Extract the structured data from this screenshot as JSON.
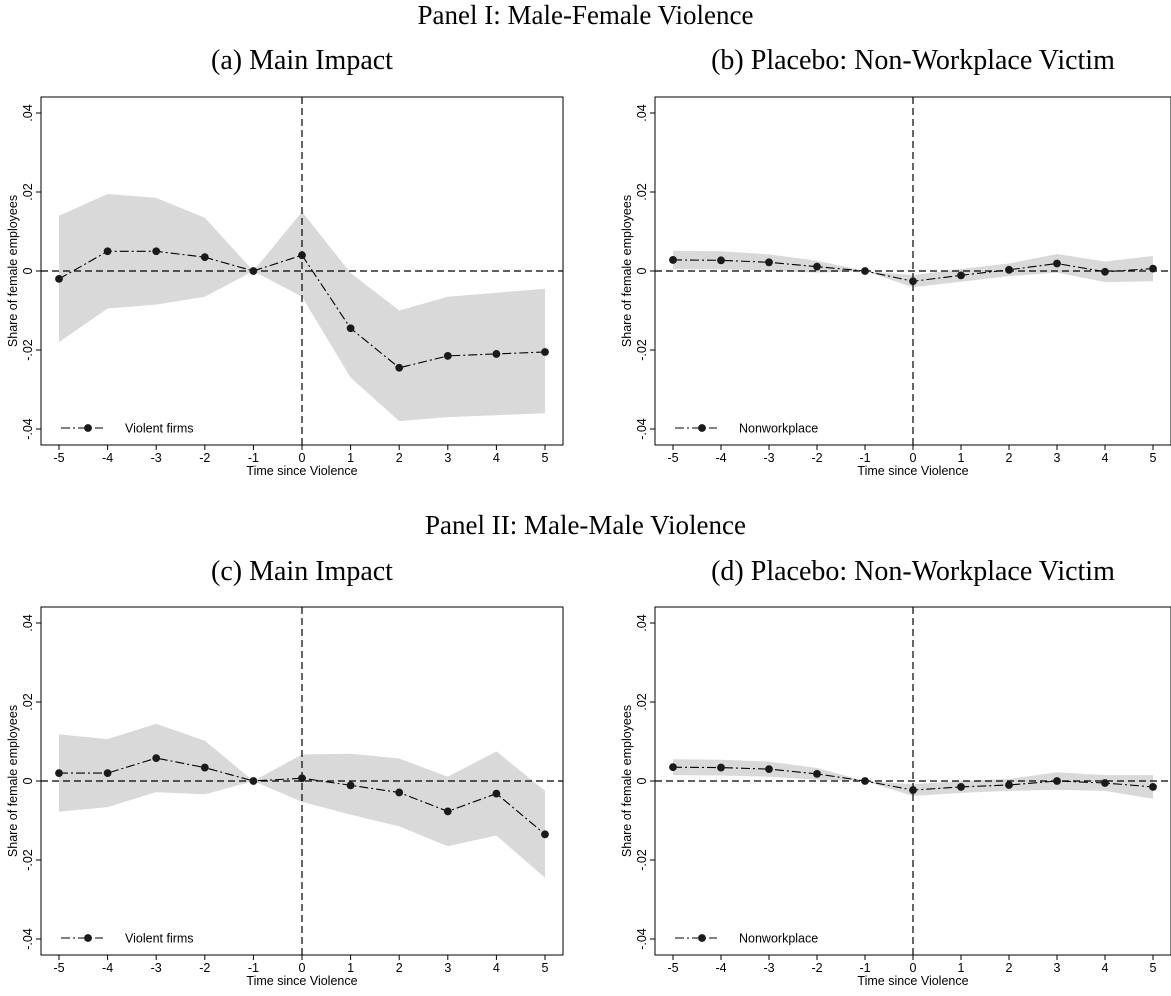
{
  "panels": [
    {
      "title": "Panel I: Male-Female Violence"
    },
    {
      "title": "Panel II: Male-Male Violence"
    }
  ],
  "chart_data": [
    {
      "type": "line",
      "title": "(a) Main Impact",
      "xlabel": "Time since Violence",
      "ylabel": "Share of female employees",
      "x": [
        -5,
        -4,
        -3,
        -2,
        -1,
        0,
        1,
        2,
        3,
        4,
        5
      ],
      "xlim": [
        -5,
        5
      ],
      "ylim": [
        -0.04,
        0.04
      ],
      "xticks": [
        "-5",
        "-4",
        "-3",
        "-2",
        "-1",
        "0",
        "1",
        "2",
        "3",
        "4",
        "5"
      ],
      "yticks": [
        ".04",
        ".02",
        "0",
        "-.02",
        "-.04"
      ],
      "series": [
        {
          "name": "Violent firms",
          "values": [
            -0.002,
            0.005,
            0.005,
            0.0035,
            0.0,
            0.004,
            -0.0145,
            -0.0245,
            -0.0215,
            -0.021,
            -0.0205
          ],
          "ci_lower": [
            -0.018,
            -0.0095,
            -0.0085,
            -0.0065,
            0.0,
            -0.0065,
            -0.027,
            -0.038,
            -0.037,
            -0.0365,
            -0.036
          ],
          "ci_upper": [
            0.014,
            0.0195,
            0.0185,
            0.0135,
            0.0,
            0.015,
            -0.0005,
            -0.01,
            -0.0065,
            -0.0055,
            -0.0045
          ]
        }
      ],
      "legend": "bottom-left",
      "reference_lines": {
        "x": 0,
        "y": 0
      }
    },
    {
      "type": "line",
      "title": "(b) Placebo: Non-Workplace Victim",
      "xlabel": "Time since Violence",
      "ylabel": "Share of female employees",
      "x": [
        -5,
        -4,
        -3,
        -2,
        -1,
        0,
        1,
        2,
        3,
        4,
        5
      ],
      "xlim": [
        -5,
        5
      ],
      "ylim": [
        -0.04,
        0.04
      ],
      "xticks": [
        "-5",
        "-4",
        "-3",
        "-2",
        "-1",
        "0",
        "1",
        "2",
        "3",
        "4",
        "5"
      ],
      "yticks": [
        ".04",
        ".02",
        "0",
        "-.02",
        "-.04"
      ],
      "series": [
        {
          "name": "Nonworkplace",
          "values": [
            0.0028,
            0.0027,
            0.0022,
            0.0011,
            0.0,
            -0.0026,
            -0.0011,
            0.0003,
            0.0019,
            -0.0002,
            0.0006
          ],
          "ci_lower": [
            0.0005,
            0.0004,
            0.0001,
            -0.0004,
            0.0,
            -0.0041,
            -0.0027,
            -0.0013,
            -0.0004,
            -0.0028,
            -0.0026
          ],
          "ci_upper": [
            0.0051,
            0.005,
            0.0042,
            0.0026,
            0.0,
            -0.0011,
            0.0005,
            0.0019,
            0.0043,
            0.0024,
            0.0038
          ]
        }
      ],
      "legend": "bottom-left",
      "reference_lines": {
        "x": 0,
        "y": 0
      }
    },
    {
      "type": "line",
      "title": "(c) Main Impact",
      "xlabel": "Time since Violence",
      "ylabel": "Share of female employees",
      "x": [
        -5,
        -4,
        -3,
        -2,
        -1,
        0,
        1,
        2,
        3,
        4,
        5
      ],
      "xlim": [
        -5,
        5
      ],
      "ylim": [
        -0.04,
        0.04
      ],
      "xticks": [
        "-5",
        "-4",
        "-3",
        "-2",
        "-1",
        "0",
        "1",
        "2",
        "3",
        "4",
        "5"
      ],
      "yticks": [
        ".04",
        ".02",
        "0",
        "-.02",
        "-.04"
      ],
      "series": [
        {
          "name": "Violent firms",
          "values": [
            0.002,
            0.002,
            0.0058,
            0.0034,
            0.0,
            0.0007,
            -0.0011,
            -0.0029,
            -0.0077,
            -0.0032,
            -0.0135
          ],
          "ci_lower": [
            -0.0078,
            -0.0066,
            -0.0028,
            -0.0034,
            0.0,
            -0.0053,
            -0.0085,
            -0.0115,
            -0.0165,
            -0.0138,
            -0.0245
          ],
          "ci_upper": [
            0.0118,
            0.0106,
            0.0145,
            0.0102,
            0.0,
            0.0067,
            0.0069,
            0.0057,
            0.0011,
            0.0075,
            -0.0025
          ]
        }
      ],
      "legend": "bottom-left",
      "reference_lines": {
        "x": 0,
        "y": 0
      }
    },
    {
      "type": "line",
      "title": "(d) Placebo: Non-Workplace Victim",
      "xlabel": "Time since Violence",
      "ylabel": "Share of female employees",
      "x": [
        -5,
        -4,
        -3,
        -2,
        -1,
        0,
        1,
        2,
        3,
        4,
        5
      ],
      "xlim": [
        -5,
        5
      ],
      "ylim": [
        -0.04,
        0.04
      ],
      "xticks": [
        "-5",
        "-4",
        "-3",
        "-2",
        "-1",
        "0",
        "1",
        "2",
        "3",
        "4",
        "5"
      ],
      "yticks": [
        ".04",
        ".02",
        "0",
        "-.02",
        "-.04"
      ],
      "series": [
        {
          "name": "Nonworkplace",
          "values": [
            0.0035,
            0.0034,
            0.003,
            0.0018,
            0.0,
            -0.0023,
            -0.0015,
            -0.001,
            0.0,
            -0.0005,
            -0.0015
          ],
          "ci_lower": [
            0.0015,
            0.0014,
            0.0011,
            0.0003,
            0.0,
            -0.0038,
            -0.003,
            -0.0025,
            -0.0022,
            -0.0025,
            -0.0045
          ],
          "ci_upper": [
            0.0055,
            0.0054,
            0.0049,
            0.0033,
            0.0,
            -0.0008,
            0.0,
            0.0005,
            0.0022,
            0.0015,
            0.0015
          ]
        }
      ],
      "legend": "bottom-left",
      "reference_lines": {
        "x": 0,
        "y": 0
      }
    }
  ]
}
